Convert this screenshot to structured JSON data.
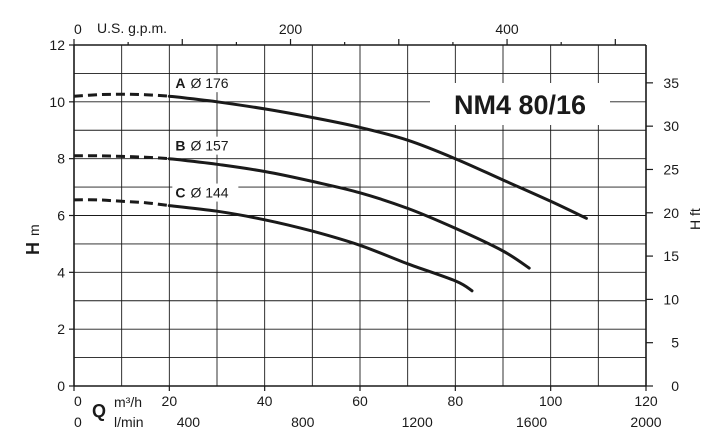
{
  "chart_data": {
    "type": "line",
    "title": "NM4 80/16",
    "colors": {
      "line": "#1a1a1a",
      "grid": "#1a1a1a",
      "background": "#ffffff"
    },
    "grid": true,
    "x_primary": {
      "label": "Q",
      "unit": "m³/h",
      "range": [
        0,
        120
      ],
      "ticks": [
        "0",
        "20",
        "40",
        "60",
        "80",
        "100",
        "120"
      ]
    },
    "x_lmin": {
      "unit": "l/min",
      "range": [
        0,
        2000
      ],
      "ticks": [
        "0",
        "400",
        "800",
        "1200",
        "1600",
        "2000"
      ]
    },
    "x_gpm": {
      "label": "U.S. g.p.m.",
      "ticks": [
        "0",
        "200",
        "400"
      ]
    },
    "y_primary": {
      "label": "H",
      "unit": "m",
      "range": [
        0,
        12
      ],
      "ticks": [
        "0",
        "2",
        "4",
        "6",
        "8",
        "10",
        "12"
      ]
    },
    "y_secondary": {
      "label": "H ft",
      "ticks": [
        "0",
        "5",
        "10",
        "15",
        "20",
        "25",
        "30",
        "35"
      ]
    },
    "series": [
      {
        "name": "A",
        "diameter_label": "Ø 176",
        "dashed_segment": [
          [
            0,
            10.2
          ],
          [
            5,
            10.25
          ],
          [
            10,
            10.27
          ],
          [
            15,
            10.25
          ],
          [
            20,
            10.2
          ]
        ],
        "values": [
          [
            20,
            10.2
          ],
          [
            30,
            10.0
          ],
          [
            40,
            9.75
          ],
          [
            50,
            9.45
          ],
          [
            60,
            9.1
          ],
          [
            70,
            8.65
          ],
          [
            80,
            8.0
          ],
          [
            90,
            7.25
          ],
          [
            100,
            6.5
          ],
          [
            107.5,
            5.9
          ]
        ]
      },
      {
        "name": "B",
        "diameter_label": "Ø 157",
        "dashed_segment": [
          [
            0,
            8.1
          ],
          [
            5,
            8.1
          ],
          [
            10,
            8.08
          ],
          [
            15,
            8.05
          ],
          [
            20,
            8.0
          ]
        ],
        "values": [
          [
            20,
            8.0
          ],
          [
            30,
            7.8
          ],
          [
            40,
            7.55
          ],
          [
            50,
            7.2
          ],
          [
            60,
            6.8
          ],
          [
            70,
            6.25
          ],
          [
            80,
            5.55
          ],
          [
            90,
            4.75
          ],
          [
            95.5,
            4.15
          ]
        ]
      },
      {
        "name": "C",
        "diameter_label": "Ø 144",
        "dashed_segment": [
          [
            0,
            6.55
          ],
          [
            5,
            6.55
          ],
          [
            10,
            6.5
          ],
          [
            15,
            6.45
          ],
          [
            20,
            6.35
          ]
        ],
        "values": [
          [
            20,
            6.35
          ],
          [
            30,
            6.15
          ],
          [
            40,
            5.85
          ],
          [
            50,
            5.45
          ],
          [
            60,
            4.95
          ],
          [
            70,
            4.3
          ],
          [
            80,
            3.7
          ],
          [
            83.5,
            3.35
          ]
        ]
      }
    ]
  }
}
